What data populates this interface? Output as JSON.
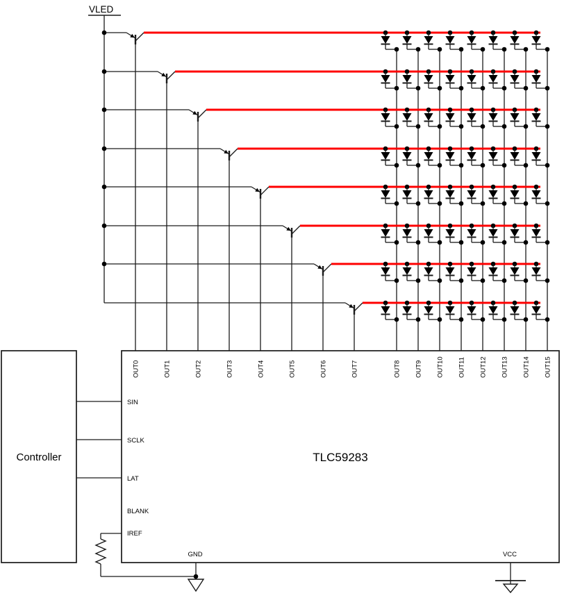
{
  "diagram": {
    "supply_label": "VLED",
    "controller": {
      "label": "Controller"
    },
    "chip": {
      "name": "TLC59283",
      "top_pins": [
        "OUT0",
        "OUT1",
        "OUT2",
        "OUT3",
        "OUT4",
        "OUT5",
        "OUT6",
        "OUT7",
        "OUT8",
        "OUT9",
        "OUT10",
        "OUT11",
        "OUT12",
        "OUT13",
        "OUT14",
        "OUT15"
      ],
      "left_pins": [
        "SIN",
        "SCLK",
        "LAT",
        "BLANK",
        "IREF"
      ],
      "bottom_left_pin": "GND",
      "bottom_right_pin": "VCC"
    },
    "matrix": {
      "rows": 8,
      "cols": 8
    },
    "row_drivers": {
      "count": 8,
      "type": "PNP transistor"
    },
    "colors": {
      "wire": "#1a1a1a",
      "row_wire": "#ff0000",
      "background": "#ffffff"
    }
  }
}
